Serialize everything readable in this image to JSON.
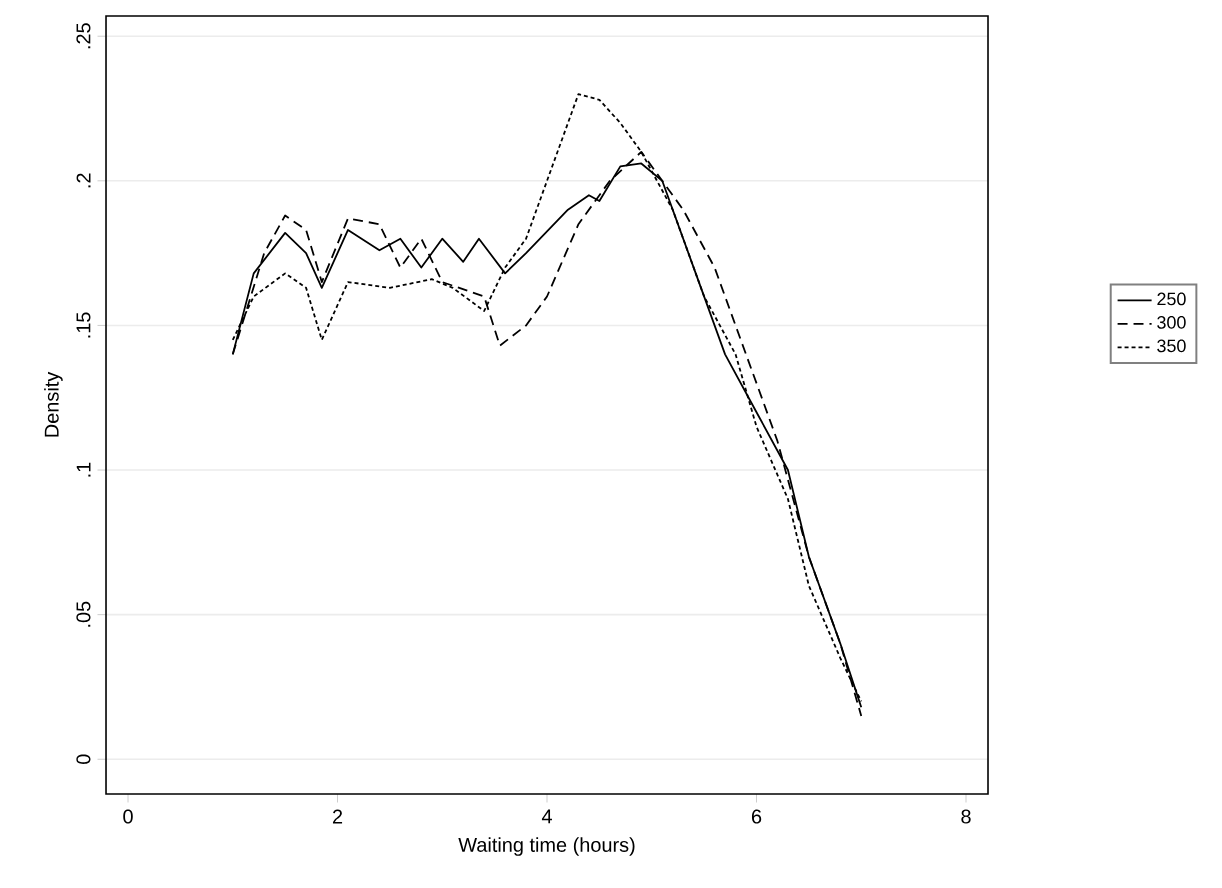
{
  "chart_data": {
    "type": "line",
    "xlabel": "Waiting time (hours)",
    "ylabel": "Density",
    "xlim": [
      -0.21,
      8.21
    ],
    "ylim": [
      -0.012,
      0.257
    ],
    "xticks": [
      0,
      2,
      4,
      6,
      8
    ],
    "yticks": [
      {
        "value": 0,
        "label": "0"
      },
      {
        "value": 0.05,
        "label": ".05"
      },
      {
        "value": 0.1,
        "label": ".1"
      },
      {
        "value": 0.15,
        "label": ".15"
      },
      {
        "value": 0.2,
        "label": ".2"
      },
      {
        "value": 0.25,
        "label": ".25"
      }
    ],
    "grid": "y",
    "legend": "right",
    "marker": "none",
    "series": [
      {
        "name": "250",
        "color": "#000000",
        "line_style": "solid",
        "x": [
          1,
          1.2,
          1.5,
          1.7,
          1.85,
          2.1,
          2.4,
          2.6,
          2.8,
          3.0,
          3.2,
          3.35,
          3.6,
          3.8,
          4.2,
          4.4,
          4.5,
          4.7,
          4.9,
          5.1,
          5.4,
          5.7,
          6.0,
          6.3,
          6.5,
          6.8,
          7.0
        ],
        "values": [
          0.14,
          0.168,
          0.182,
          0.175,
          0.163,
          0.183,
          0.176,
          0.18,
          0.17,
          0.18,
          0.172,
          0.18,
          0.168,
          0.175,
          0.19,
          0.195,
          0.193,
          0.205,
          0.206,
          0.2,
          0.17,
          0.14,
          0.12,
          0.1,
          0.07,
          0.04,
          0.018
        ]
      },
      {
        "name": "300",
        "color": "#000000",
        "line_style": "dashed",
        "x": [
          1,
          1.3,
          1.5,
          1.7,
          1.85,
          2.1,
          2.4,
          2.6,
          2.8,
          3.0,
          3.4,
          3.55,
          3.8,
          4.0,
          4.3,
          4.6,
          4.9,
          5.3,
          5.6,
          5.9,
          6.2,
          6.5,
          6.8,
          7.0
        ],
        "values": [
          0.14,
          0.175,
          0.188,
          0.183,
          0.165,
          0.187,
          0.185,
          0.17,
          0.18,
          0.165,
          0.16,
          0.143,
          0.15,
          0.16,
          0.185,
          0.2,
          0.21,
          0.19,
          0.17,
          0.14,
          0.11,
          0.07,
          0.04,
          0.015
        ]
      },
      {
        "name": "350",
        "color": "#000000",
        "line_style": "dotted",
        "x": [
          1,
          1.2,
          1.5,
          1.7,
          1.85,
          2.1,
          2.5,
          2.9,
          3.1,
          3.4,
          3.6,
          3.8,
          4.0,
          4.2,
          4.3,
          4.5,
          4.7,
          4.9,
          5.2,
          5.5,
          5.8,
          6.0,
          6.3,
          6.5,
          6.8,
          7.0
        ],
        "values": [
          0.145,
          0.16,
          0.168,
          0.163,
          0.145,
          0.165,
          0.163,
          0.166,
          0.163,
          0.155,
          0.17,
          0.18,
          0.2,
          0.22,
          0.23,
          0.228,
          0.22,
          0.21,
          0.19,
          0.16,
          0.14,
          0.115,
          0.09,
          0.06,
          0.035,
          0.02
        ]
      }
    ]
  }
}
